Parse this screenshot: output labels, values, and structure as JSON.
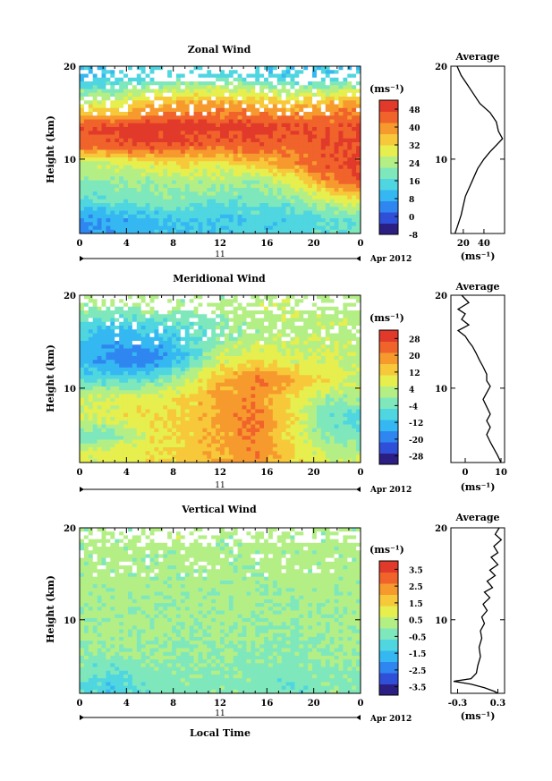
{
  "panels": [
    {
      "title": "Zonal Wind",
      "ylabel": "Height (km)",
      "yticks": [
        "20",
        "10"
      ],
      "xticks": [
        "0",
        "4",
        "8",
        "12",
        "16",
        "20",
        "0"
      ],
      "date_label": "11",
      "month_label": "Apr 2012",
      "colorbar_unit": "(ms⁻¹)",
      "colorbar_labels": [
        "48",
        "40",
        "32",
        "24",
        "16",
        "8",
        "0",
        "-8"
      ],
      "avg_title": "Average",
      "avg_yticks": [
        "20",
        "10"
      ],
      "avg_xticks": [
        "20",
        "40"
      ],
      "avg_unit": "(ms⁻¹)"
    },
    {
      "title": "Meridional Wind",
      "ylabel": "Height (km)",
      "yticks": [
        "20",
        "10"
      ],
      "xticks": [
        "0",
        "4",
        "8",
        "12",
        "16",
        "20",
        "0"
      ],
      "date_label": "11",
      "month_label": "Apr 2012",
      "colorbar_unit": "(ms⁻¹)",
      "colorbar_labels": [
        "28",
        "20",
        "12",
        "4",
        "-4",
        "-12",
        "-20",
        "-28"
      ],
      "avg_title": "Average",
      "avg_yticks": [
        "20",
        "10"
      ],
      "avg_xticks": [
        "0",
        "10"
      ],
      "avg_unit": "(ms⁻¹)"
    },
    {
      "title": "Vertical Wind",
      "ylabel": "Height (km)",
      "yticks": [
        "20",
        "10"
      ],
      "xticks": [
        "0",
        "4",
        "8",
        "12",
        "16",
        "20",
        "0"
      ],
      "date_label": "11",
      "month_label": "Apr 2012",
      "colorbar_unit": "(ms⁻¹)",
      "colorbar_labels": [
        "3.5",
        "2.5",
        "1.5",
        "0.5",
        "-0.5",
        "-1.5",
        "-2.5",
        "-3.5"
      ],
      "avg_title": "Average",
      "avg_yticks": [
        "20",
        "10"
      ],
      "avg_xticks": [
        "-0.3",
        "0.3"
      ],
      "avg_unit": "(ms⁻¹)",
      "xlabel": "Local Time"
    }
  ],
  "colors": {
    "cmap": [
      "#2c1f84",
      "#2f4fd8",
      "#2f86f0",
      "#35b8f2",
      "#4fd6e0",
      "#7ee8bc",
      "#b4ef86",
      "#e6ef4e",
      "#f6c83a",
      "#f79a2e",
      "#f0632b",
      "#e23a2a"
    ]
  },
  "chart_data": [
    {
      "type": "heatmap",
      "title": "Zonal Wind",
      "xlabel": "",
      "ylabel": "Height (km)",
      "x_range_local_time_h": [
        0,
        24
      ],
      "y_range_km": [
        2,
        20
      ],
      "color_range": [
        -8,
        52
      ],
      "colorbar_ticks": [
        -8,
        0,
        8,
        16,
        24,
        32,
        40,
        48
      ],
      "field_sketch": [
        {
          "height_km": 19,
          "values": [
            10,
            12,
            14,
            14,
            16,
            14,
            12,
            12,
            14
          ]
        },
        {
          "height_km": 16,
          "values": [
            28,
            28,
            34,
            38,
            38,
            36,
            34,
            36,
            40
          ]
        },
        {
          "height_km": 13.5,
          "values": [
            46,
            48,
            50,
            50,
            48,
            50,
            48,
            46,
            46
          ]
        },
        {
          "height_km": 11.5,
          "values": [
            44,
            46,
            48,
            46,
            44,
            46,
            44,
            46,
            48
          ]
        },
        {
          "height_km": 9.5,
          "values": [
            24,
            28,
            30,
            32,
            30,
            34,
            40,
            46,
            48
          ]
        },
        {
          "height_km": 7.5,
          "values": [
            20,
            22,
            22,
            24,
            24,
            22,
            28,
            40,
            46
          ]
        },
        {
          "height_km": 5.5,
          "values": [
            16,
            18,
            20,
            20,
            18,
            18,
            20,
            26,
            30
          ]
        },
        {
          "height_km": 3.5,
          "values": [
            6,
            8,
            10,
            12,
            12,
            14,
            14,
            16,
            18
          ]
        }
      ],
      "average_profile": {
        "title": "Average",
        "x_range": [
          8,
          60
        ],
        "xticks": [
          20,
          40
        ],
        "xlabel": "(ms⁻¹)",
        "points": [
          [
            14,
            20
          ],
          [
            18,
            19
          ],
          [
            24,
            18
          ],
          [
            30,
            17
          ],
          [
            36,
            16
          ],
          [
            46,
            15
          ],
          [
            52,
            14
          ],
          [
            54,
            13
          ],
          [
            58,
            12.2
          ],
          [
            52,
            11.5
          ],
          [
            46,
            10.8
          ],
          [
            40,
            10
          ],
          [
            34,
            9
          ],
          [
            30,
            8
          ],
          [
            26,
            7
          ],
          [
            22,
            6
          ],
          [
            20,
            5
          ],
          [
            18,
            4
          ],
          [
            15,
            3
          ],
          [
            12,
            2
          ]
        ]
      }
    },
    {
      "type": "heatmap",
      "title": "Meridional Wind",
      "xlabel": "",
      "ylabel": "Height (km)",
      "x_range_local_time_h": [
        0,
        24
      ],
      "y_range_km": [
        2,
        20
      ],
      "color_range": [
        -32,
        32
      ],
      "colorbar_ticks": [
        -28,
        -20,
        -12,
        -4,
        4,
        12,
        20,
        28
      ],
      "field_sketch": [
        {
          "height_km": 19,
          "values": [
            2,
            2,
            4,
            2,
            2,
            4,
            4,
            2,
            4
          ]
        },
        {
          "height_km": 16,
          "values": [
            -10,
            -14,
            -12,
            -8,
            -2,
            2,
            4,
            4,
            2
          ]
        },
        {
          "height_km": 13,
          "values": [
            -14,
            -18,
            -20,
            -10,
            6,
            10,
            6,
            6,
            4
          ]
        },
        {
          "height_km": 11,
          "values": [
            -6,
            -8,
            -6,
            4,
            14,
            22,
            18,
            10,
            6
          ]
        },
        {
          "height_km": 9,
          "values": [
            4,
            6,
            8,
            10,
            18,
            20,
            10,
            2,
            0
          ]
        },
        {
          "height_km": 7,
          "values": [
            6,
            8,
            10,
            12,
            18,
            22,
            12,
            -4,
            -6
          ]
        },
        {
          "height_km": 5,
          "values": [
            -4,
            -2,
            8,
            12,
            16,
            22,
            10,
            -2,
            -4
          ]
        },
        {
          "height_km": 3,
          "values": [
            6,
            8,
            10,
            12,
            16,
            20,
            12,
            4,
            4
          ]
        }
      ],
      "average_profile": {
        "title": "Average",
        "x_range": [
          -4,
          11
        ],
        "xticks": [
          0,
          10
        ],
        "xlabel": "(ms⁻¹)",
        "points": [
          [
            -1,
            20
          ],
          [
            1,
            19.2
          ],
          [
            -2,
            18.5
          ],
          [
            0,
            18
          ],
          [
            -1,
            17.4
          ],
          [
            1,
            16.8
          ],
          [
            -2,
            16.2
          ],
          [
            0,
            15.6
          ],
          [
            1,
            15
          ],
          [
            2,
            14.5
          ],
          [
            3,
            13.8
          ],
          [
            4,
            13
          ],
          [
            5,
            12.3
          ],
          [
            6,
            11.5
          ],
          [
            6,
            10.8
          ],
          [
            7,
            10.2
          ],
          [
            6,
            9.5
          ],
          [
            5,
            8.8
          ],
          [
            6,
            8
          ],
          [
            7,
            7.2
          ],
          [
            6,
            6.5
          ],
          [
            7,
            5.8
          ],
          [
            6,
            5
          ],
          [
            7,
            4.2
          ],
          [
            8,
            3.5
          ],
          [
            9,
            2.8
          ],
          [
            10,
            2
          ]
        ]
      }
    },
    {
      "type": "heatmap",
      "title": "Vertical Wind",
      "xlabel": "Local Time",
      "ylabel": "Height (km)",
      "x_range_local_time_h": [
        0,
        24
      ],
      "y_range_km": [
        2,
        20
      ],
      "color_range": [
        -4,
        4
      ],
      "colorbar_ticks": [
        -3.5,
        -2.5,
        -1.5,
        -0.5,
        0.5,
        1.5,
        2.5,
        3.5
      ],
      "field_sketch": [
        {
          "height_km": 19,
          "values": [
            0.3,
            0.2,
            0.3,
            0.4,
            0.2,
            0.3,
            0.3,
            0.2,
            0.3
          ]
        },
        {
          "height_km": 15,
          "values": [
            0.2,
            0.3,
            0.2,
            0.2,
            0.3,
            0.2,
            0.2,
            0.3,
            0.2
          ]
        },
        {
          "height_km": 11,
          "values": [
            0.1,
            0.2,
            0.2,
            0.1,
            0.2,
            0.2,
            0.1,
            0.2,
            0.2
          ]
        },
        {
          "height_km": 7,
          "values": [
            0.0,
            0.1,
            0.1,
            0.0,
            0.1,
            0.0,
            -0.2,
            0.0,
            0.1
          ]
        },
        {
          "height_km": 3,
          "values": [
            -0.6,
            -1.2,
            -0.4,
            -0.3,
            -0.2,
            -0.3,
            -0.5,
            -0.2,
            -0.2
          ]
        }
      ],
      "average_profile": {
        "title": "Average",
        "x_range": [
          -0.4,
          0.4
        ],
        "xticks": [
          -0.3,
          0.3
        ],
        "xlabel": "(ms⁻¹)",
        "points": [
          [
            0.32,
            20
          ],
          [
            0.26,
            19.3
          ],
          [
            0.35,
            18.7
          ],
          [
            0.24,
            18
          ],
          [
            0.3,
            17.3
          ],
          [
            0.2,
            16.8
          ],
          [
            0.3,
            16
          ],
          [
            0.18,
            15.4
          ],
          [
            0.26,
            14.8
          ],
          [
            0.14,
            14.2
          ],
          [
            0.22,
            13.5
          ],
          [
            0.1,
            13
          ],
          [
            0.18,
            12.4
          ],
          [
            0.08,
            11.7
          ],
          [
            0.14,
            11
          ],
          [
            0.06,
            10.3
          ],
          [
            0.1,
            9.6
          ],
          [
            0.04,
            8.8
          ],
          [
            0.06,
            8
          ],
          [
            0.02,
            7
          ],
          [
            0.04,
            6
          ],
          [
            0.0,
            5
          ],
          [
            -0.02,
            4.2
          ],
          [
            -0.1,
            3.6
          ],
          [
            -0.36,
            3.3
          ],
          [
            -0.1,
            3.0
          ],
          [
            0.1,
            2.6
          ],
          [
            0.25,
            2.2
          ],
          [
            0.3,
            2
          ]
        ]
      }
    }
  ]
}
